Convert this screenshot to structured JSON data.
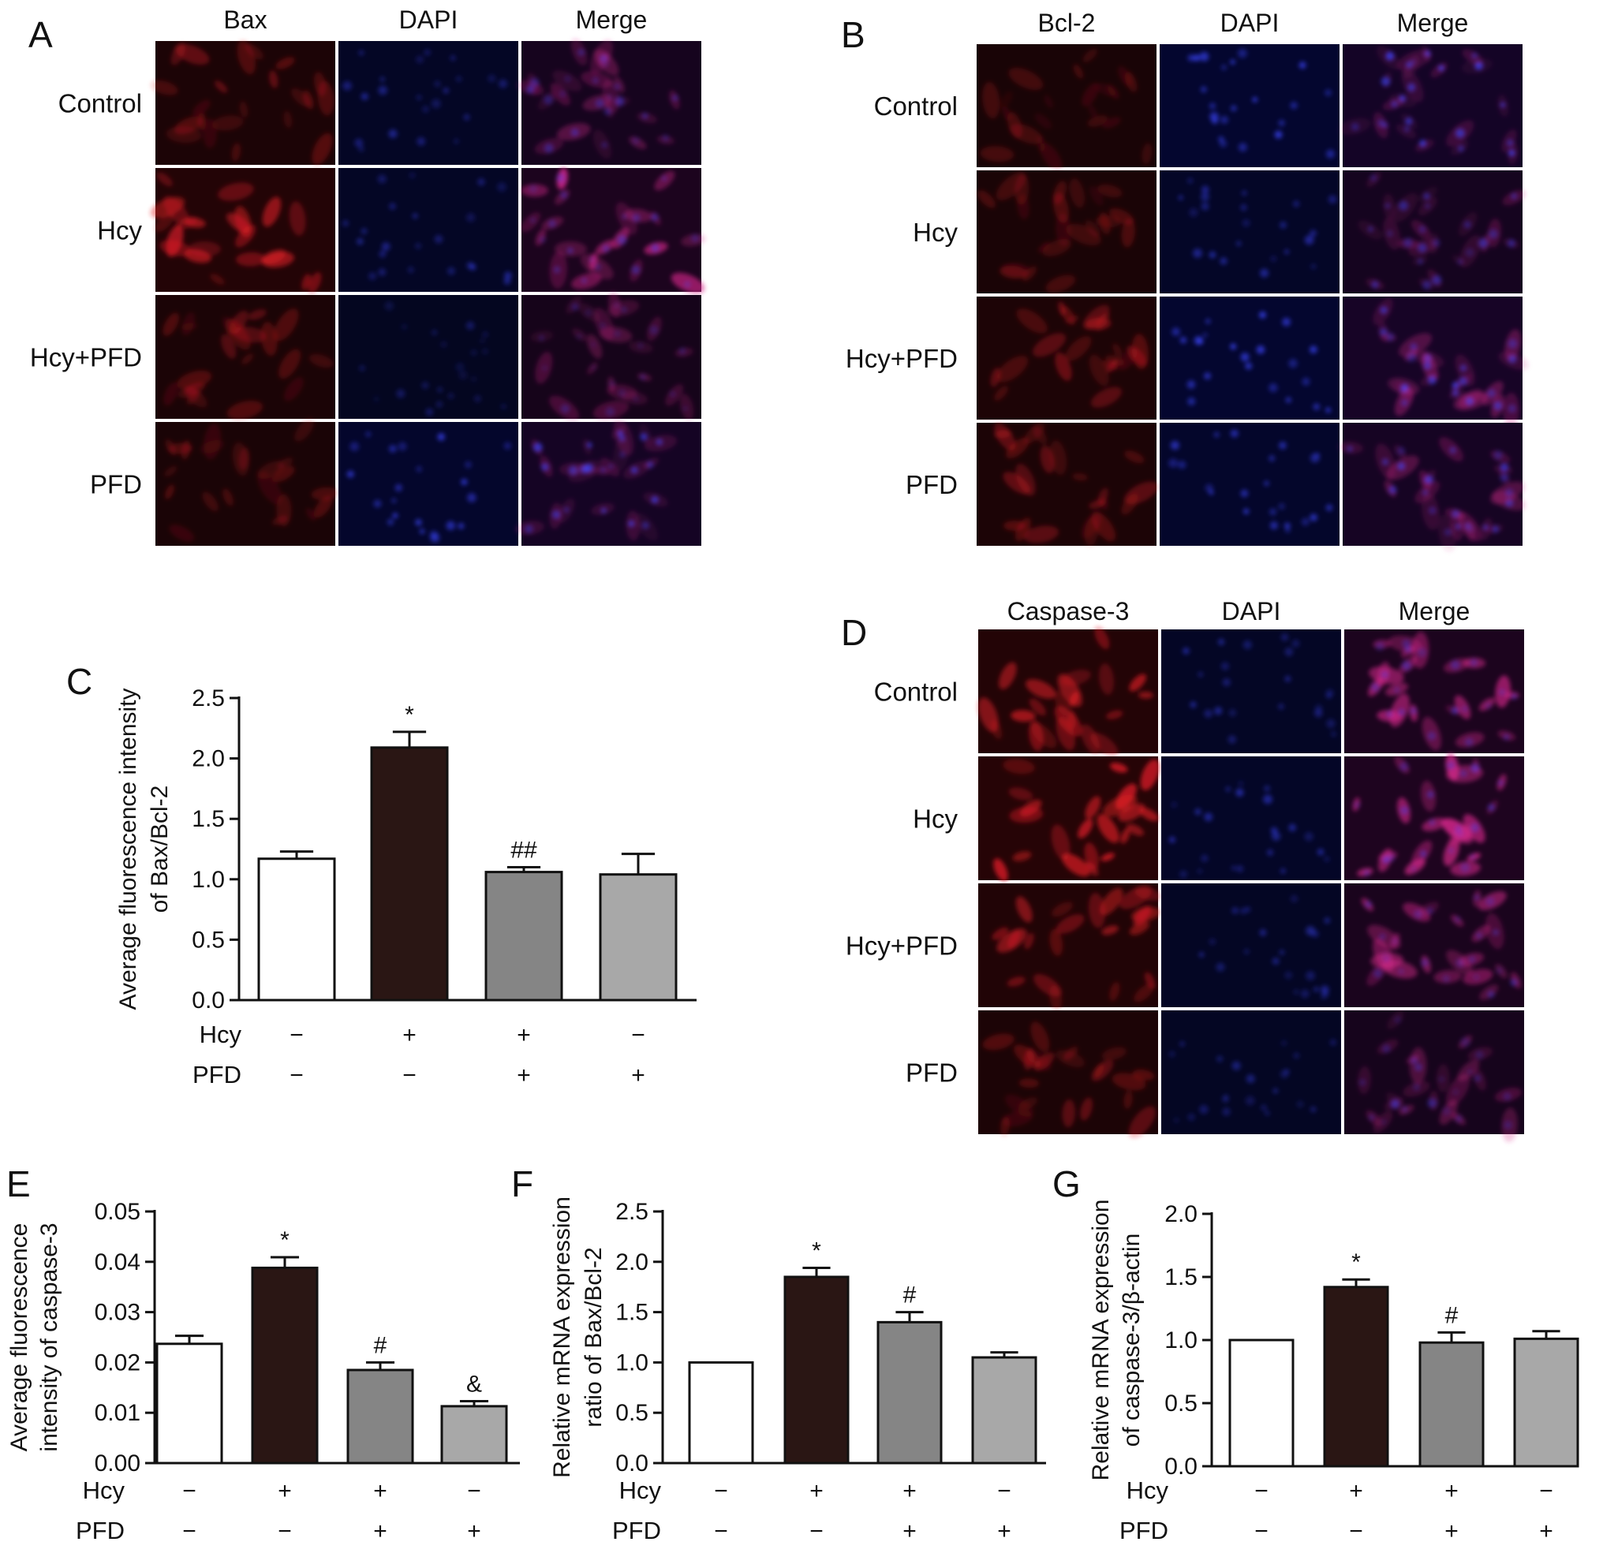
{
  "micrographs": [
    {
      "id": "A",
      "panel_label": "A",
      "columns": [
        "Bax",
        "DAPI",
        "Merge"
      ],
      "rows": [
        "Control",
        "Hcy",
        "Hcy+PFD",
        "PFD"
      ],
      "red_intensity": [
        0.45,
        0.85,
        0.4,
        0.35
      ],
      "blue_intensity": [
        0.55,
        0.55,
        0.35,
        0.8
      ]
    },
    {
      "id": "B",
      "panel_label": "B",
      "columns": [
        "Bcl-2",
        "DAPI",
        "Merge"
      ],
      "rows": [
        "Control",
        "Hcy",
        "Hcy+PFD",
        "PFD"
      ],
      "red_intensity": [
        0.3,
        0.35,
        0.5,
        0.45
      ],
      "blue_intensity": [
        0.9,
        0.6,
        0.9,
        0.75
      ]
    },
    {
      "id": "D",
      "panel_label": "D",
      "columns": [
        "Caspase-3",
        "DAPI",
        "Merge"
      ],
      "rows": [
        "Control",
        "Hcy",
        "Hcy+PFD",
        "PFD"
      ],
      "red_intensity": [
        0.85,
        1.0,
        0.7,
        0.45
      ],
      "blue_intensity": [
        0.55,
        0.6,
        0.5,
        0.45
      ]
    }
  ],
  "condition_rows": [
    "Hcy",
    "PFD"
  ],
  "condition_table": {
    "Hcy": [
      "−",
      "+",
      "+",
      "−"
    ],
    "PFD": [
      "−",
      "−",
      "+",
      "+"
    ]
  },
  "bar_fills": [
    "#ffffff",
    "#2a1614",
    "#858585",
    "#a8a8a8"
  ],
  "chart_data": [
    {
      "id": "C",
      "panel_label": "C",
      "type": "bar",
      "ylabel_lines": [
        "Average fluorescence intensity",
        "of Bax/Bcl-2"
      ],
      "ylim": [
        0,
        2.5
      ],
      "yticks": [
        "0.0",
        "0.5",
        "1.0",
        "1.5",
        "2.0",
        "2.5"
      ],
      "values": [
        1.17,
        2.09,
        1.06,
        1.04
      ],
      "errors": [
        0.06,
        0.13,
        0.04,
        0.17
      ],
      "annotations": [
        "",
        "*",
        "##",
        ""
      ]
    },
    {
      "id": "E",
      "panel_label": "E",
      "type": "bar",
      "ylabel_lines": [
        "Average fluorescence",
        "intensity of caspase-3"
      ],
      "ylim": [
        0,
        0.05
      ],
      "yticks": [
        "0.00",
        "0.01",
        "0.02",
        "0.03",
        "0.04",
        "0.05"
      ],
      "values": [
        0.0237,
        0.0388,
        0.0185,
        0.0113
      ],
      "errors": [
        0.0016,
        0.0021,
        0.0015,
        0.001
      ],
      "annotations": [
        "",
        "*",
        "#",
        "&"
      ]
    },
    {
      "id": "F",
      "panel_label": "F",
      "type": "bar",
      "ylabel_lines": [
        "Relative mRNA expression",
        "ratio of Bax/Bcl-2"
      ],
      "ylim": [
        0,
        2.5
      ],
      "yticks": [
        "0.0",
        "0.5",
        "1.0",
        "1.5",
        "2.0",
        "2.5"
      ],
      "values": [
        1.0,
        1.85,
        1.4,
        1.05
      ],
      "errors": [
        0.0,
        0.09,
        0.1,
        0.05
      ],
      "annotations": [
        "",
        "*",
        "#",
        ""
      ]
    },
    {
      "id": "G",
      "panel_label": "G",
      "type": "bar",
      "ylabel_lines": [
        "Relative mRNA expression",
        "of caspase-3/β-actin"
      ],
      "ylim": [
        0,
        2.0
      ],
      "yticks": [
        "0.0",
        "0.5",
        "1.0",
        "1.5",
        "2.0"
      ],
      "values": [
        1.0,
        1.42,
        0.98,
        1.01
      ],
      "errors": [
        0.0,
        0.06,
        0.08,
        0.06
      ],
      "annotations": [
        "",
        "*",
        "#",
        ""
      ]
    }
  ]
}
